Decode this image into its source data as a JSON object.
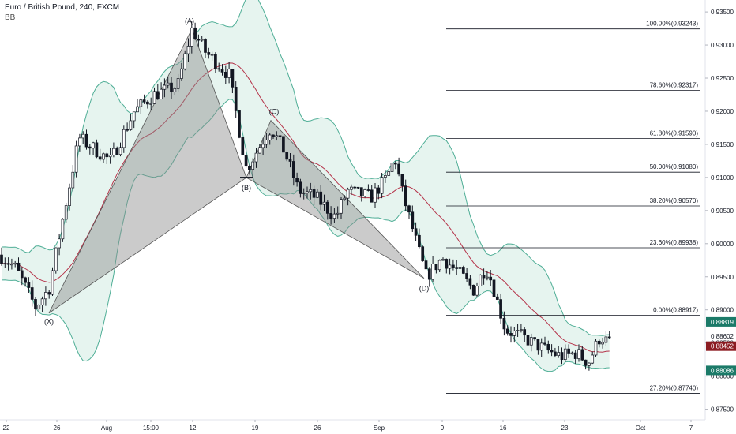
{
  "header": {
    "title": "Euro / British Pound, 240, FXCM",
    "indicator": "BB"
  },
  "colors": {
    "background": "#ffffff",
    "up": "#ffffff",
    "down": "#131722",
    "bb_band": "#4fae96",
    "bb_fill": "#e6f4ef",
    "bb_basis": "#b5344a",
    "pattern_fill": "#8c8c8c",
    "fib_line": "#131722",
    "price_current": "#8c1c22",
    "price_bid": "#1b7a68"
  },
  "chart_data": {
    "type": "candlestick",
    "title": "Euro / British Pound, 240, FXCM",
    "xlabel": "",
    "ylabel": "",
    "ylim": [
      0.8734,
      0.9368
    ],
    "y_ticks": [
      "0.87500",
      "0.88000",
      "0.88500",
      "0.89000",
      "0.89500",
      "0.90000",
      "0.90500",
      "0.91000",
      "0.91500",
      "0.92000",
      "0.92500",
      "0.93000",
      "0.93500"
    ],
    "x_ticks": [
      "22",
      "26",
      "Aug",
      "15:00",
      "12",
      "19",
      "26",
      "Sep",
      "9",
      "16",
      "23",
      "Oct",
      "7"
    ],
    "price_labels": [
      {
        "value": "0.88819",
        "style": "bid"
      },
      {
        "value": "0.88602",
        "style": "plain"
      },
      {
        "value": "0.88452",
        "style": "current"
      },
      {
        "value": "0.88086",
        "style": "bid"
      }
    ],
    "pattern_points": [
      {
        "label": "(X)",
        "price": 0.88952
      },
      {
        "label": "(A)",
        "price": 0.93243
      },
      {
        "label": "(B)",
        "price": 0.90998
      },
      {
        "label": "(C)",
        "price": 0.91862
      },
      {
        "label": "(D)",
        "price": 0.89477
      }
    ],
    "fib_levels": [
      {
        "label": "100.00%(0.93243)",
        "price": 0.93243
      },
      {
        "label": "78.60%(0.92317)",
        "price": 0.92317
      },
      {
        "label": "61.80%(0.91590)",
        "price": 0.9159
      },
      {
        "label": "50.00%(0.91080)",
        "price": 0.9108
      },
      {
        "label": "38.20%(0.90570)",
        "price": 0.9057
      },
      {
        "label": "23.60%(0.89938)",
        "price": 0.89938
      },
      {
        "label": "0.00%(0.88917)",
        "price": 0.88917
      },
      {
        "label": "27.20%(0.87740)",
        "price": 0.8774
      }
    ],
    "grid": false,
    "legend": "none"
  }
}
